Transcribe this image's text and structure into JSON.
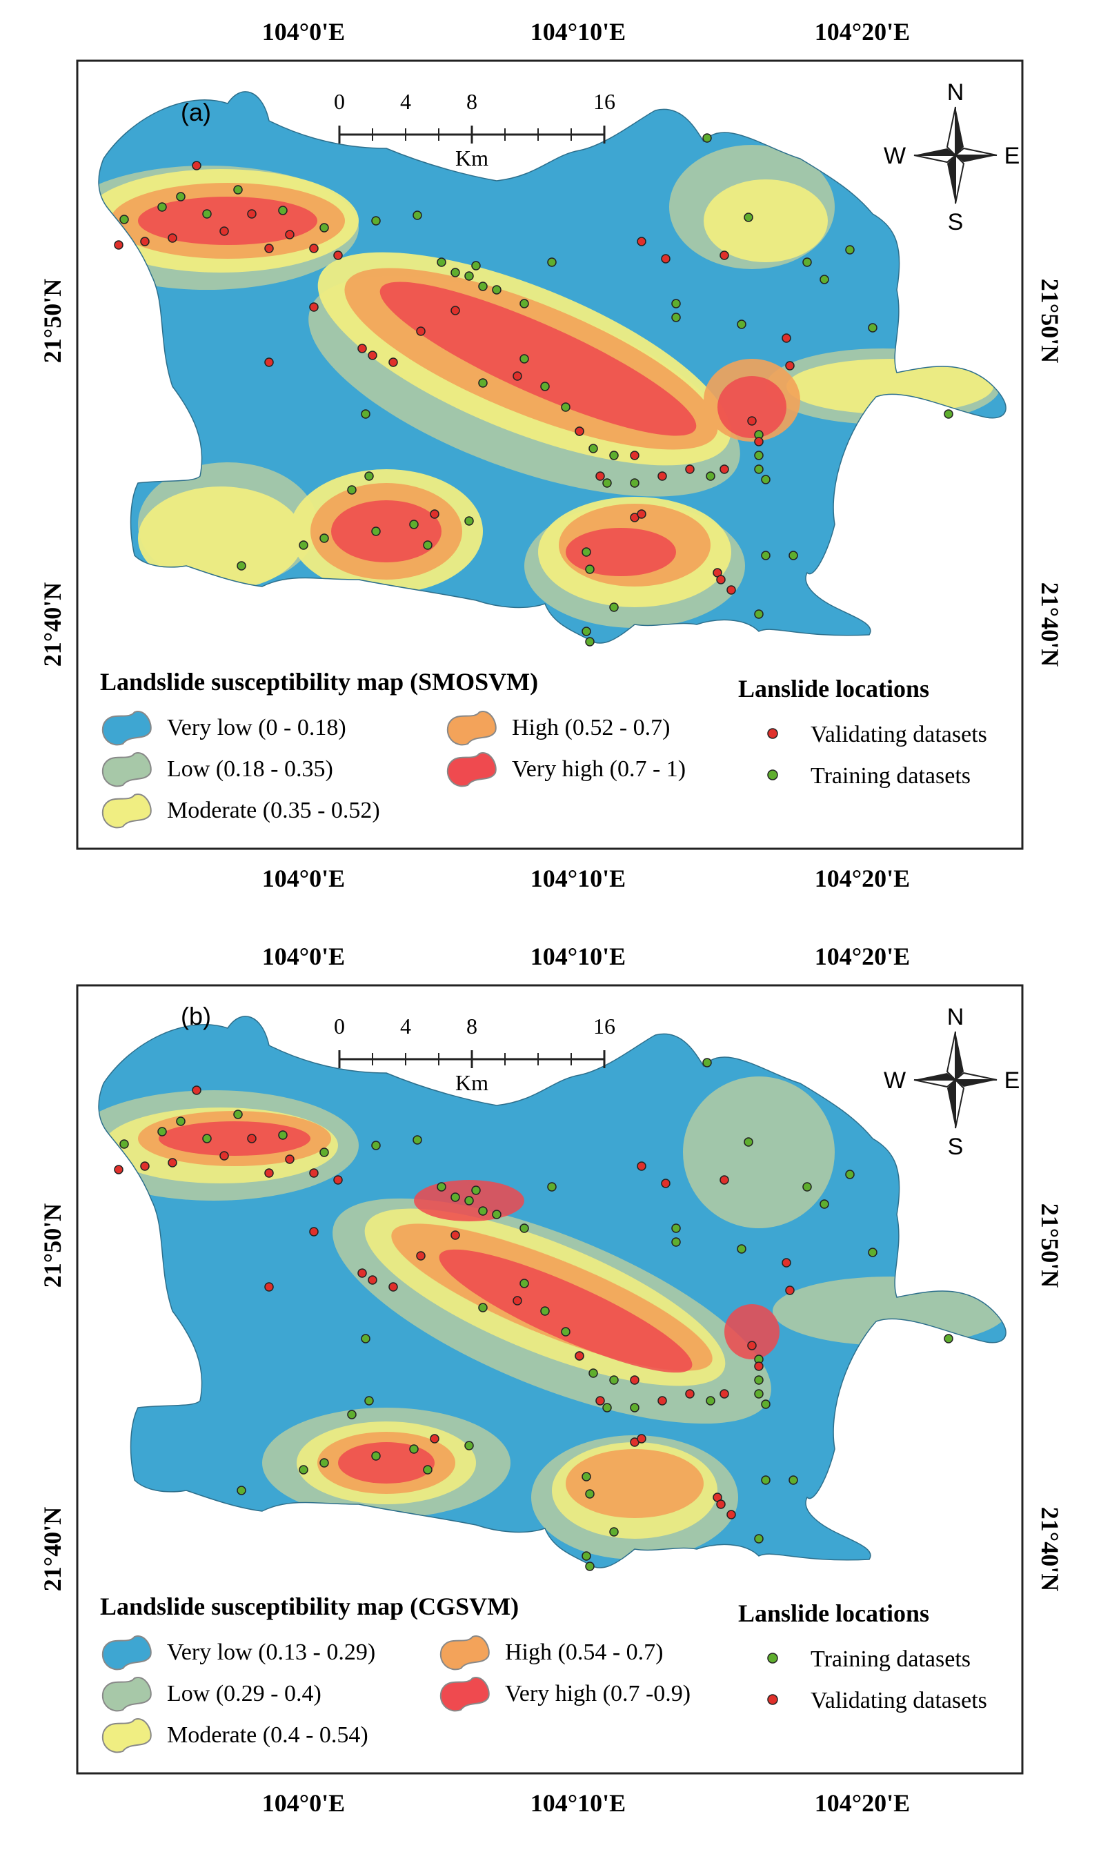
{
  "colors": {
    "very_low": "#3ea6d2",
    "low": "#a7c8a8",
    "moderate": "#f0ee82",
    "high": "#f3a35a",
    "very_high": "#ef4a4f",
    "validating": "#e0302b",
    "training": "#5fae2e"
  },
  "panels": [
    {
      "id": "a",
      "panel_label": "(a)",
      "lon_labels": [
        "104°0'E",
        "104°10'E",
        "104°20'E"
      ],
      "lat_labels": [
        "21°50'N",
        "21°40'N"
      ],
      "scale": {
        "ticks": [
          "0",
          "4",
          "8",
          "16"
        ],
        "unit": "Km"
      },
      "compass": {
        "n": "N",
        "s": "S",
        "e": "E",
        "w": "W"
      },
      "legend_title": "Landslide susceptibility map (SMOSVM)",
      "classes": [
        {
          "label": "Very low (0 - 0.18)",
          "color_key": "very_low"
        },
        {
          "label": "Low (0.18 - 0.35)",
          "color_key": "low"
        },
        {
          "label": "Moderate (0.35 - 0.52)",
          "color_key": "moderate"
        },
        {
          "label": "High (0.52 - 0.7)",
          "color_key": "high"
        },
        {
          "label": "Very high (0.7 - 1)",
          "color_key": "very_high"
        }
      ],
      "locations_title": "Lanslide locations",
      "locations": [
        {
          "label": "Validating datasets",
          "color_key": "validating"
        },
        {
          "label": "Training datasets",
          "color_key": "training"
        }
      ]
    },
    {
      "id": "b",
      "panel_label": "(b)",
      "lon_labels": [
        "104°0'E",
        "104°10'E",
        "104°20'E"
      ],
      "lat_labels": [
        "21°50'N",
        "21°40'N"
      ],
      "scale": {
        "ticks": [
          "0",
          "4",
          "8",
          "16"
        ],
        "unit": "Km"
      },
      "compass": {
        "n": "N",
        "s": "S",
        "e": "E",
        "w": "W"
      },
      "legend_title": "Landslide susceptibility map (CGSVM)",
      "classes": [
        {
          "label": "Very low (0.13 - 0.29)",
          "color_key": "very_low"
        },
        {
          "label": "Low (0.29 - 0.4)",
          "color_key": "low"
        },
        {
          "label": "Moderate (0.4 - 0.54)",
          "color_key": "moderate"
        },
        {
          "label": "High (0.54 - 0.7)",
          "color_key": "high"
        },
        {
          "label": "Very high (0.7 -0.9)",
          "color_key": "very_high"
        }
      ],
      "locations_title": "Lanslide locations",
      "locations": [
        {
          "label": "Training datasets",
          "color_key": "training"
        },
        {
          "label": "Validating datasets",
          "color_key": "validating"
        }
      ]
    }
  ]
}
